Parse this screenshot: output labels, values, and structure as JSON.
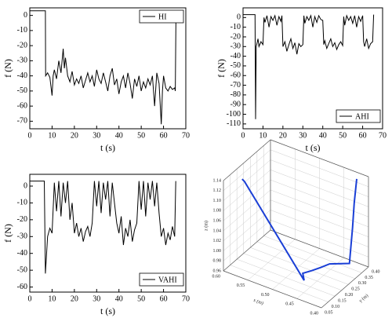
{
  "chart_data": [
    {
      "type": "line",
      "xlabel": "t (s)",
      "ylabel": "f (N)",
      "legend": "upper right",
      "x": [
        0,
        7,
        7.1,
        8,
        9,
        10,
        10.5,
        11,
        12,
        13,
        14,
        15,
        15.5,
        16,
        17,
        18,
        19,
        20,
        21,
        22,
        23,
        24,
        25,
        26,
        27,
        28,
        29,
        30,
        31,
        32,
        33,
        34,
        35,
        36,
        37,
        38,
        39,
        40,
        41,
        42,
        43,
        44,
        45,
        46,
        47,
        48,
        49,
        50,
        51,
        52,
        53,
        54,
        55,
        56,
        57,
        58,
        59,
        59.5,
        60,
        61,
        62,
        63,
        64,
        65,
        65.3,
        65.6
      ],
      "series": [
        {
          "name": "HI",
          "color": "#000000",
          "values": [
            3,
            3,
            -40,
            -38,
            -41,
            -53,
            -40,
            -36,
            -42,
            -30,
            -38,
            -22,
            -35,
            -28,
            -40,
            -44,
            -37,
            -46,
            -42,
            -45,
            -40,
            -48,
            -43,
            -38,
            -44,
            -40,
            -47,
            -36,
            -42,
            -45,
            -38,
            -44,
            -50,
            -40,
            -35,
            -46,
            -42,
            -52,
            -44,
            -40,
            -48,
            -38,
            -45,
            -55,
            -42,
            -47,
            -40,
            -50,
            -44,
            -48,
            -42,
            -46,
            -40,
            -60,
            -38,
            -45,
            -72,
            -50,
            -40,
            -48,
            -50,
            -47,
            -49,
            -48,
            -50,
            3
          ]
        }
      ],
      "xlim": [
        0,
        70
      ],
      "xticks": [
        0,
        10,
        20,
        30,
        40,
        50,
        60,
        70
      ],
      "ylim": [
        -75,
        5
      ],
      "yticks": [
        0,
        -10,
        -20,
        -30,
        -40,
        -50,
        -60,
        -70
      ]
    },
    {
      "type": "line",
      "xlabel": "t (s)",
      "ylabel": "f (N)",
      "legend": "lower right",
      "x": [
        0,
        6,
        6.3,
        6.6,
        7.5,
        8,
        9,
        10,
        10.5,
        11,
        12,
        13,
        14,
        15,
        16,
        17,
        18,
        19,
        19.5,
        20,
        21,
        22,
        23,
        24,
        25,
        26,
        27,
        28,
        29,
        30,
        30.5,
        31,
        32,
        33,
        34,
        35,
        36,
        37,
        38,
        39,
        40,
        40.5,
        41,
        42,
        43,
        44,
        45,
        46,
        47,
        48,
        49,
        50,
        50.5,
        51,
        52,
        53,
        54,
        55,
        56,
        57,
        58,
        59,
        60,
        60.5,
        61,
        62,
        63,
        64,
        65,
        65.5
      ],
      "series": [
        {
          "name": "AHI",
          "color": "#000000",
          "values": [
            3,
            3,
            -105,
            -30,
            -22,
            -30,
            -25,
            -28,
            0,
            -5,
            2,
            -10,
            1,
            -3,
            2,
            -8,
            1,
            -4,
            2,
            -30,
            -25,
            -35,
            -28,
            -22,
            -32,
            -26,
            -38,
            -27,
            -30,
            -28,
            2,
            -6,
            1,
            -3,
            2,
            -10,
            1,
            -5,
            2,
            -2,
            -3,
            -28,
            -24,
            -32,
            -27,
            -22,
            -30,
            -26,
            -33,
            -28,
            -25,
            -29,
            1,
            -8,
            2,
            -3,
            1,
            -6,
            2,
            -10,
            1,
            -4,
            2,
            -25,
            -30,
            -22,
            -32,
            -27,
            -25,
            3
          ]
        }
      ],
      "xlim": [
        0,
        70
      ],
      "xticks": [
        0,
        10,
        20,
        30,
        40,
        50,
        60,
        70
      ],
      "ylim": [
        -115,
        10
      ],
      "yticks": [
        0,
        -10,
        -20,
        -30,
        -40,
        -50,
        -60,
        -70,
        -80,
        -90,
        -100,
        -110
      ]
    },
    {
      "type": "line",
      "xlabel": "t (s)",
      "ylabel": "f (N)",
      "legend": "lower right",
      "x": [
        0,
        6.5,
        7,
        8,
        9,
        10,
        11,
        12,
        13,
        14,
        15,
        16,
        17,
        18,
        19,
        20,
        21,
        22,
        23,
        24,
        25,
        26,
        27,
        28,
        29,
        30,
        31,
        32,
        33,
        34,
        35,
        36,
        37,
        38,
        39,
        40,
        41,
        42,
        43,
        44,
        45,
        46,
        47,
        48,
        49,
        50,
        51,
        52,
        53,
        54,
        55,
        56,
        57,
        58,
        59,
        60,
        61,
        62,
        63,
        64,
        65,
        65.5
      ],
      "series": [
        {
          "name": "VAHI",
          "color": "#000000",
          "values": [
            3,
            3,
            -52,
            -30,
            -25,
            -28,
            2,
            -15,
            3,
            -18,
            2,
            -10,
            3,
            -20,
            -10,
            -28,
            -22,
            -30,
            -25,
            -33,
            -27,
            -24,
            -30,
            -22,
            3,
            -12,
            3,
            -16,
            2,
            -8,
            3,
            -18,
            2,
            -10,
            -22,
            -28,
            -18,
            -35,
            -25,
            -30,
            -20,
            -33,
            -26,
            -22,
            3,
            -14,
            3,
            -18,
            2,
            -8,
            3,
            -12,
            2,
            -16,
            -30,
            -25,
            -35,
            -28,
            -32,
            -24,
            -30,
            3
          ]
        }
      ],
      "xlim": [
        0,
        70
      ],
      "xticks": [
        0,
        10,
        20,
        30,
        40,
        50,
        60,
        70
      ],
      "ylim": [
        -63,
        7
      ],
      "yticks": [
        0,
        -10,
        -20,
        -30,
        -40,
        -50,
        -60
      ]
    },
    {
      "type": "line3d",
      "xlabel": "x (m)",
      "ylabel": "y (m)",
      "zlabel": "z (m)",
      "color": "#1a3fd6",
      "x": [
        0.58,
        0.575,
        0.449,
        0.46,
        0.45,
        0.44,
        0.43,
        0.4,
        0.405,
        0.41,
        0.413
      ],
      "y": [
        0.116,
        0.116,
        0.1,
        0.13,
        0.16,
        0.19,
        0.22,
        0.258,
        0.3,
        0.33,
        0.36
      ],
      "z": [
        1.135,
        1.132,
        0.985,
        0.988,
        0.99,
        0.993,
        0.997,
        1.0,
        1.06,
        1.1,
        1.14
      ],
      "xlim": [
        0.4,
        0.6
      ],
      "xticks": [
        {
          "value": 0.4,
          "label": "0.40"
        },
        0.45,
        {
          "value": 0.5,
          "label": "0.50"
        },
        0.55,
        {
          "value": 0.6,
          "label": "0.60"
        }
      ],
      "ylim": [
        0.05,
        0.4
      ],
      "yticks": [
        0.05,
        {
          "value": 0.1,
          "label": "0.10"
        },
        0.15,
        {
          "value": 0.2,
          "label": "0.20"
        },
        0.25,
        {
          "value": 0.3,
          "label": "0.30"
        },
        0.35,
        {
          "value": 0.4,
          "label": "0.40"
        }
      ],
      "zlim": [
        0.96,
        1.14
      ],
      "zticks": [
        0.96,
        0.98,
        {
          "value": 1.0,
          "label": "1.00"
        },
        1.02,
        1.04,
        1.06,
        1.08,
        {
          "value": 1.1,
          "label": "1.10"
        },
        1.12,
        1.14
      ]
    }
  ]
}
